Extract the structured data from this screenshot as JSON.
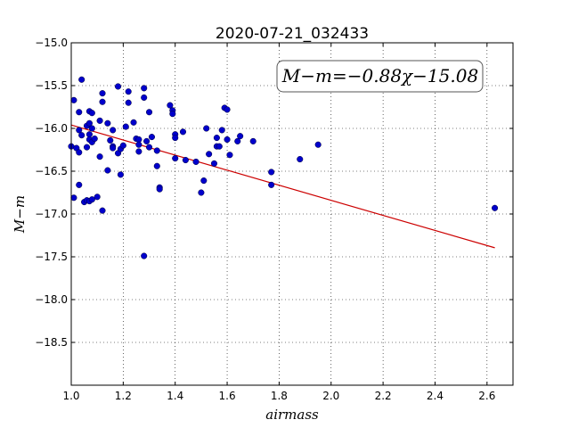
{
  "chart_data": {
    "type": "scatter",
    "title": "2020-07-21_032433",
    "xlabel": "airmass",
    "ylabel": "M−m",
    "annotation": "M−m=−0.88χ−15.08",
    "xlim": [
      1.0,
      2.7
    ],
    "ylim": [
      -15.0,
      -19.0
    ],
    "y_inverted": true,
    "grid": true,
    "xticks": [
      "1.0",
      "1.2",
      "1.4",
      "1.6",
      "1.8",
      "2.0",
      "2.2",
      "2.4",
      "2.6"
    ],
    "yticks": [
      "−15.0",
      "−15.5",
      "−16.0",
      "−16.5",
      "−17.0",
      "−17.5",
      "−18.0",
      "−18.5"
    ],
    "xtick_values": [
      1.0,
      1.2,
      1.4,
      1.6,
      1.8,
      2.0,
      2.2,
      2.4,
      2.6
    ],
    "ytick_values": [
      -15.0,
      -15.5,
      -16.0,
      -16.5,
      -17.0,
      -17.5,
      -18.0,
      -18.5
    ],
    "point_color": "#0000cc",
    "fit_color": "#cc0000",
    "fit": {
      "slope": -0.88,
      "intercept": -15.08,
      "x": [
        1.0,
        2.63
      ]
    },
    "points": [
      {
        "x": 1.01,
        "y": -15.67
      },
      {
        "x": 1.0,
        "y": -16.21
      },
      {
        "x": 1.01,
        "y": -16.81
      },
      {
        "x": 1.02,
        "y": -16.23
      },
      {
        "x": 1.03,
        "y": -15.81
      },
      {
        "x": 1.03,
        "y": -16.02
      },
      {
        "x": 1.03,
        "y": -16.28
      },
      {
        "x": 1.03,
        "y": -16.66
      },
      {
        "x": 1.04,
        "y": -16.08
      },
      {
        "x": 1.04,
        "y": -15.43
      },
      {
        "x": 1.05,
        "y": -16.86
      },
      {
        "x": 1.06,
        "y": -15.97
      },
      {
        "x": 1.06,
        "y": -16.22
      },
      {
        "x": 1.06,
        "y": -16.84
      },
      {
        "x": 1.07,
        "y": -15.8
      },
      {
        "x": 1.07,
        "y": -15.94
      },
      {
        "x": 1.07,
        "y": -16.07
      },
      {
        "x": 1.07,
        "y": -16.13
      },
      {
        "x": 1.07,
        "y": -16.85
      },
      {
        "x": 1.08,
        "y": -16.0
      },
      {
        "x": 1.08,
        "y": -16.16
      },
      {
        "x": 1.08,
        "y": -15.82
      },
      {
        "x": 1.08,
        "y": -16.83
      },
      {
        "x": 1.09,
        "y": -16.12
      },
      {
        "x": 1.1,
        "y": -16.8
      },
      {
        "x": 1.11,
        "y": -15.91
      },
      {
        "x": 1.11,
        "y": -16.33
      },
      {
        "x": 1.12,
        "y": -15.59
      },
      {
        "x": 1.12,
        "y": -15.69
      },
      {
        "x": 1.12,
        "y": -16.96
      },
      {
        "x": 1.14,
        "y": -15.94
      },
      {
        "x": 1.14,
        "y": -16.49
      },
      {
        "x": 1.15,
        "y": -16.14
      },
      {
        "x": 1.16,
        "y": -16.21
      },
      {
        "x": 1.16,
        "y": -16.23
      },
      {
        "x": 1.16,
        "y": -16.02
      },
      {
        "x": 1.18,
        "y": -15.51
      },
      {
        "x": 1.18,
        "y": -16.29
      },
      {
        "x": 1.19,
        "y": -16.24
      },
      {
        "x": 1.19,
        "y": -16.54
      },
      {
        "x": 1.2,
        "y": -16.2
      },
      {
        "x": 1.21,
        "y": -15.98
      },
      {
        "x": 1.22,
        "y": -15.57
      },
      {
        "x": 1.22,
        "y": -15.7
      },
      {
        "x": 1.24,
        "y": -15.93
      },
      {
        "x": 1.25,
        "y": -16.12
      },
      {
        "x": 1.26,
        "y": -16.13
      },
      {
        "x": 1.26,
        "y": -16.19
      },
      {
        "x": 1.26,
        "y": -16.27
      },
      {
        "x": 1.28,
        "y": -15.53
      },
      {
        "x": 1.28,
        "y": -15.64
      },
      {
        "x": 1.28,
        "y": -17.49
      },
      {
        "x": 1.29,
        "y": -16.15
      },
      {
        "x": 1.3,
        "y": -15.81
      },
      {
        "x": 1.3,
        "y": -16.22
      },
      {
        "x": 1.31,
        "y": -16.1
      },
      {
        "x": 1.33,
        "y": -16.26
      },
      {
        "x": 1.33,
        "y": -16.44
      },
      {
        "x": 1.34,
        "y": -16.69
      },
      {
        "x": 1.34,
        "y": -16.71
      },
      {
        "x": 1.38,
        "y": -15.73
      },
      {
        "x": 1.39,
        "y": -15.79
      },
      {
        "x": 1.39,
        "y": -15.83
      },
      {
        "x": 1.4,
        "y": -16.07
      },
      {
        "x": 1.4,
        "y": -16.11
      },
      {
        "x": 1.4,
        "y": -16.35
      },
      {
        "x": 1.43,
        "y": -16.04
      },
      {
        "x": 1.44,
        "y": -16.37
      },
      {
        "x": 1.48,
        "y": -16.39
      },
      {
        "x": 1.5,
        "y": -16.75
      },
      {
        "x": 1.51,
        "y": -16.61
      },
      {
        "x": 1.52,
        "y": -16.0
      },
      {
        "x": 1.53,
        "y": -16.3
      },
      {
        "x": 1.55,
        "y": -16.41
      },
      {
        "x": 1.56,
        "y": -16.11
      },
      {
        "x": 1.56,
        "y": -16.21
      },
      {
        "x": 1.57,
        "y": -16.21
      },
      {
        "x": 1.58,
        "y": -16.02
      },
      {
        "x": 1.59,
        "y": -15.76
      },
      {
        "x": 1.6,
        "y": -15.78
      },
      {
        "x": 1.6,
        "y": -16.13
      },
      {
        "x": 1.61,
        "y": -16.31
      },
      {
        "x": 1.64,
        "y": -16.15
      },
      {
        "x": 1.65,
        "y": -16.09
      },
      {
        "x": 1.7,
        "y": -16.15
      },
      {
        "x": 1.77,
        "y": -16.51
      },
      {
        "x": 1.77,
        "y": -16.66
      },
      {
        "x": 1.88,
        "y": -16.36
      },
      {
        "x": 1.95,
        "y": -16.19
      },
      {
        "x": 2.63,
        "y": -16.93
      }
    ]
  }
}
